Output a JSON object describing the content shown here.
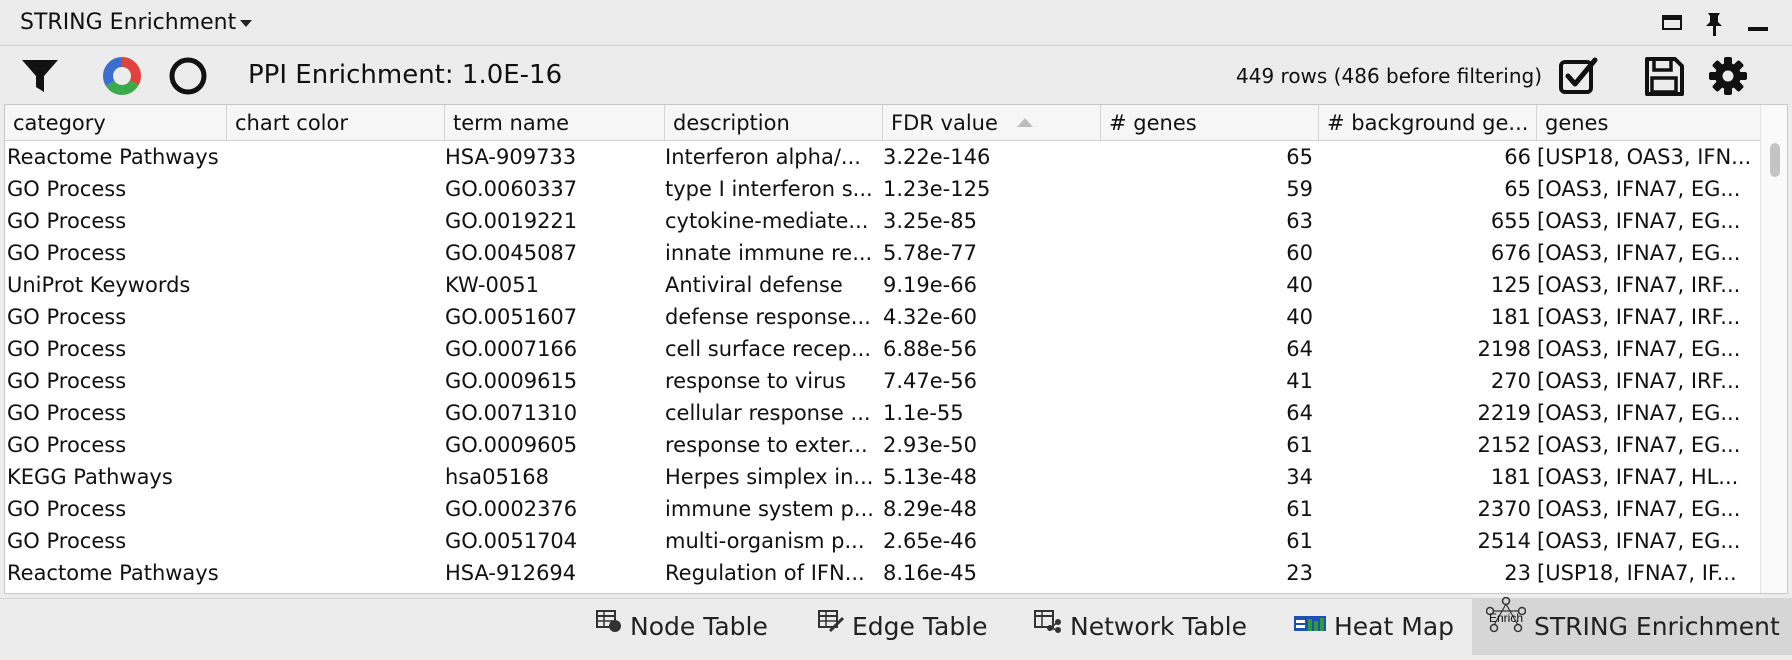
{
  "panel": {
    "title": "STRING Enrichment"
  },
  "toolbar": {
    "ppi_label": "PPI Enrichment: 1.0E-16",
    "rows_label": "449 rows (486 before filtering)"
  },
  "table": {
    "columns": [
      "category",
      "chart color",
      "term name",
      "description",
      "FDR value",
      "# genes",
      "# background ge...",
      "genes"
    ],
    "sorted_column": "FDR value",
    "rows": [
      [
        "Reactome Pathways",
        "",
        "HSA-909733",
        "Interferon alpha/...",
        "3.22e-146",
        "65",
        "66",
        "[USP18, OAS3, IFN..."
      ],
      [
        "GO Process",
        "",
        "GO.0060337",
        "type I interferon s...",
        "1.23e-125",
        "59",
        "65",
        "[OAS3, IFNA7, EG..."
      ],
      [
        "GO Process",
        "",
        "GO.0019221",
        "cytokine-mediate...",
        "3.25e-85",
        "63",
        "655",
        "[OAS3, IFNA7, EG..."
      ],
      [
        "GO Process",
        "",
        "GO.0045087",
        "innate immune re...",
        "5.78e-77",
        "60",
        "676",
        "[OAS3, IFNA7, EG..."
      ],
      [
        "UniProt Keywords",
        "",
        "KW-0051",
        "Antiviral defense",
        "9.19e-66",
        "40",
        "125",
        "[OAS3, IFNA7, IRF..."
      ],
      [
        "GO Process",
        "",
        "GO.0051607",
        "defense response...",
        "4.32e-60",
        "40",
        "181",
        "[OAS3, IFNA7, IRF..."
      ],
      [
        "GO Process",
        "",
        "GO.0007166",
        "cell surface recep...",
        "6.88e-56",
        "64",
        "2198",
        "[OAS3, IFNA7, EG..."
      ],
      [
        "GO Process",
        "",
        "GO.0009615",
        "response to virus",
        "7.47e-56",
        "41",
        "270",
        "[OAS3, IFNA7, IRF..."
      ],
      [
        "GO Process",
        "",
        "GO.0071310",
        "cellular response ...",
        "1.1e-55",
        "64",
        "2219",
        "[OAS3, IFNA7, EG..."
      ],
      [
        "GO Process",
        "",
        "GO.0009605",
        "response to exter...",
        "2.93e-50",
        "61",
        "2152",
        "[OAS3, IFNA7, EG..."
      ],
      [
        "KEGG Pathways",
        "",
        "hsa05168",
        "Herpes simplex in...",
        "5.13e-48",
        "34",
        "181",
        "[OAS3, IFNA7, HL..."
      ],
      [
        "GO Process",
        "",
        "GO.0002376",
        "immune system p...",
        "8.29e-48",
        "61",
        "2370",
        "[OAS3, IFNA7, EG..."
      ],
      [
        "GO Process",
        "",
        "GO.0051704",
        "multi-organism p...",
        "2.65e-46",
        "61",
        "2514",
        "[OAS3, IFNA7, EG..."
      ],
      [
        "Reactome Pathways",
        "",
        "HSA-912694",
        "Regulation of IFN...",
        "8.16e-45",
        "23",
        "23",
        "[USP18, IFNA7, IF..."
      ]
    ]
  },
  "tabs": [
    {
      "label": "Node Table",
      "icon": "node-table-icon"
    },
    {
      "label": "Edge Table",
      "icon": "edge-table-icon"
    },
    {
      "label": "Network Table",
      "icon": "network-table-icon"
    },
    {
      "label": "Heat Map",
      "icon": "heat-map-icon"
    },
    {
      "label": "STRING Enrichment",
      "icon": "enrichment-icon",
      "icon_text": "Enrich",
      "active": true
    }
  ],
  "colors": {
    "heat_map_blue": "#1f4fb5",
    "heat_map_green": "#2e9a3a",
    "chart_red": "#e0433b",
    "chart_green": "#3aaa4a",
    "chart_blue": "#3a6fd0"
  }
}
